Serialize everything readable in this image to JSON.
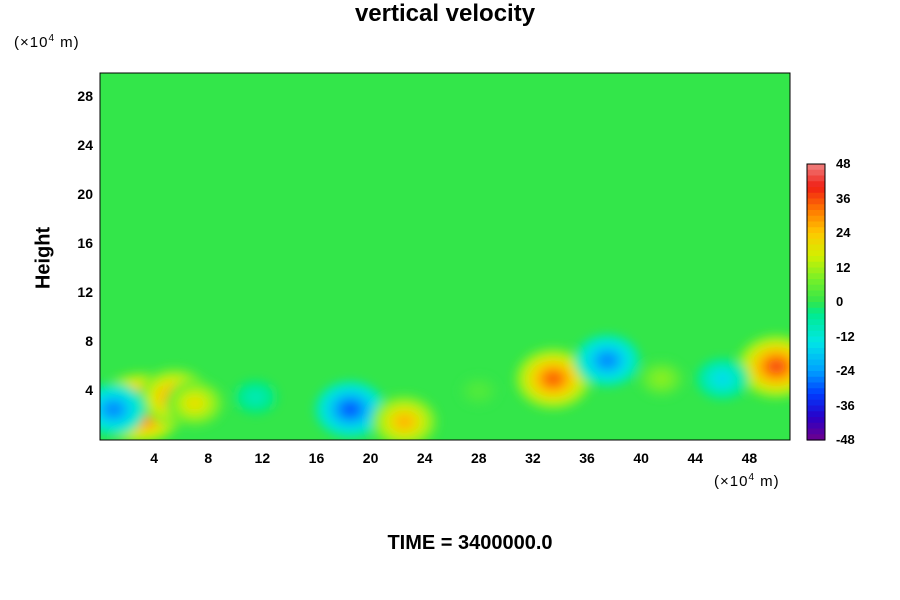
{
  "chart_data": {
    "type": "heatmap",
    "title": "vertical velocity",
    "xlabel": "",
    "ylabel": "Height",
    "x_unit": "(×10",
    "x_unit_exp": "4",
    "x_unit_tail": " m)",
    "y_unit": "(×10",
    "y_unit_exp": "4",
    "y_unit_tail": " m)",
    "xlim": [
      0,
      51
    ],
    "ylim": [
      0,
      30
    ],
    "x_ticks": [
      "4",
      "8",
      "12",
      "16",
      "20",
      "24",
      "28",
      "32",
      "36",
      "40",
      "44",
      "48"
    ],
    "y_ticks": [
      "4",
      "8",
      "12",
      "16",
      "20",
      "24",
      "28"
    ],
    "colorbar": {
      "range": [
        -48,
        48
      ],
      "ticks": [
        "48",
        "36",
        "24",
        "12",
        "0",
        "-12",
        "-24",
        "-36",
        "-48"
      ]
    },
    "background_value": 0,
    "features": [
      {
        "x": 3.0,
        "y": 2.6,
        "value": 42
      },
      {
        "x": 5.5,
        "y": 3.5,
        "value": 30
      },
      {
        "x": 7.0,
        "y": 3.0,
        "value": 20
      },
      {
        "x": 1.0,
        "y": 2.5,
        "value": -26
      },
      {
        "x": 18.5,
        "y": 2.5,
        "value": -30
      },
      {
        "x": 22.5,
        "y": 1.5,
        "value": 26
      },
      {
        "x": 33.5,
        "y": 5.0,
        "value": 34
      },
      {
        "x": 37.5,
        "y": 6.5,
        "value": -26
      },
      {
        "x": 50.0,
        "y": 6.0,
        "value": 36
      },
      {
        "x": 46.0,
        "y": 5.0,
        "value": -16
      },
      {
        "x": 11.5,
        "y": 3.5,
        "value": -9
      },
      {
        "x": 41.5,
        "y": 5.0,
        "value": 10
      },
      {
        "x": 28.0,
        "y": 4.0,
        "value": 4
      }
    ],
    "time_label": "TIME = 3400000.0"
  }
}
